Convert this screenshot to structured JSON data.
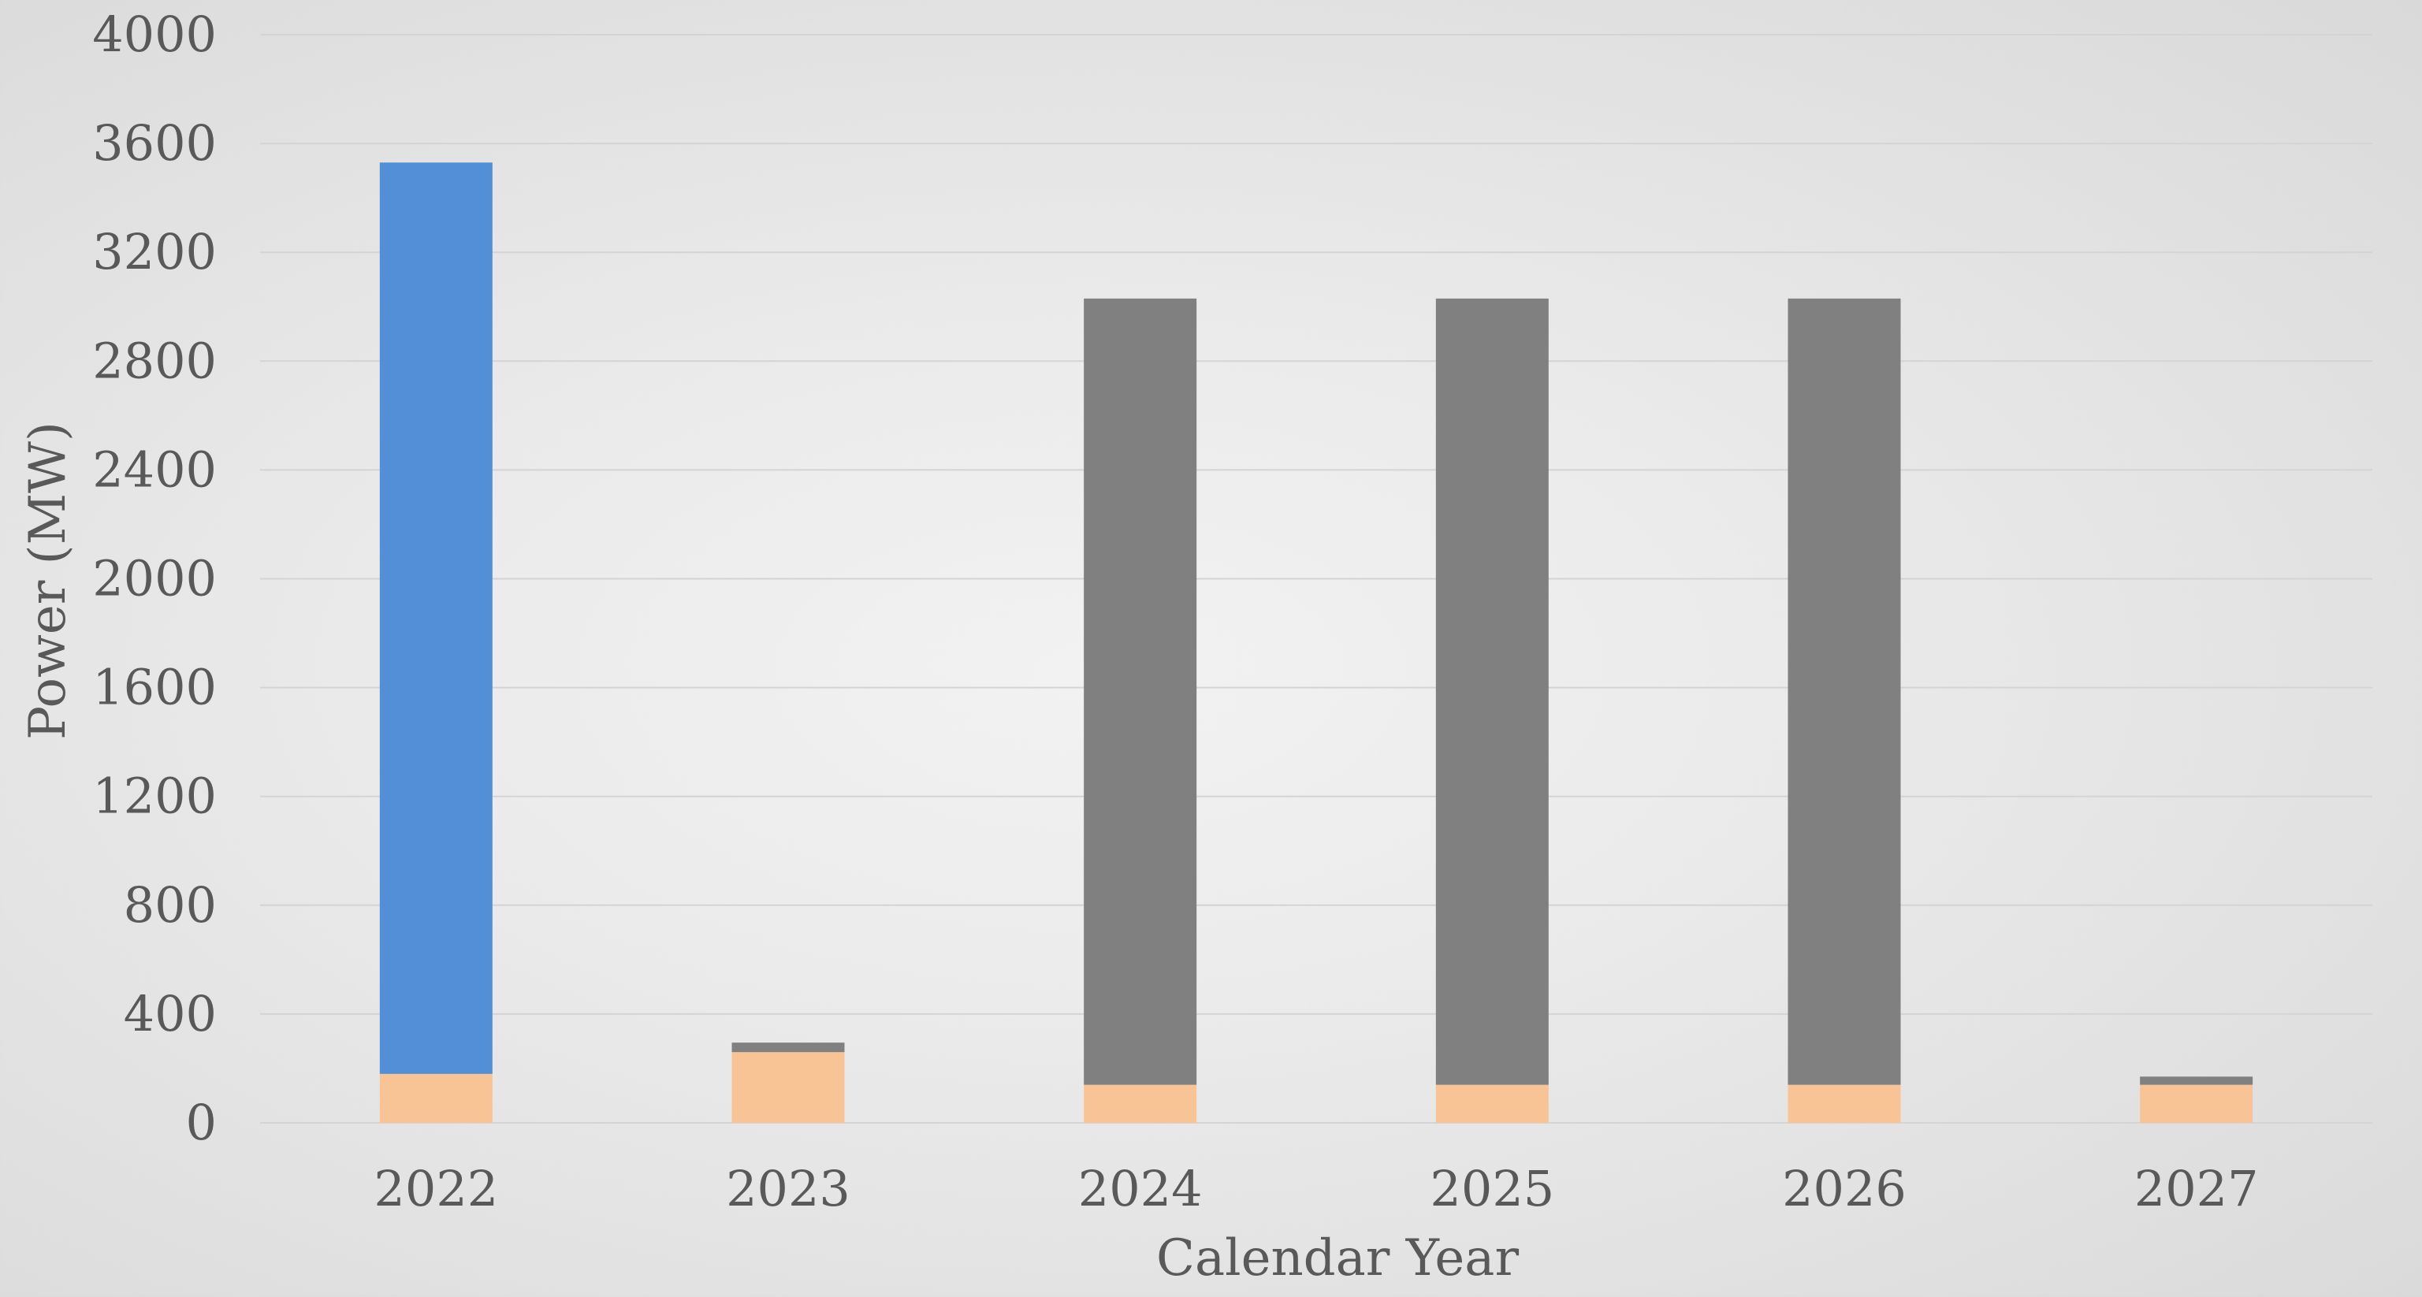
{
  "chart_data": {
    "type": "bar",
    "stacked": true,
    "categories": [
      "2022",
      "2023",
      "2024",
      "2025",
      "2026",
      "2027"
    ],
    "series": [
      {
        "color": "#F8C496",
        "values": [
          180,
          260,
          140,
          140,
          140,
          140
        ]
      },
      {
        "color": "#808080",
        "values": [
          0,
          35,
          2890,
          2890,
          2890,
          30
        ]
      },
      {
        "color": "#528FD6",
        "values": [
          3350,
          0,
          0,
          0,
          0,
          0
        ]
      }
    ],
    "title": "",
    "xlabel": "Calendar Year",
    "ylabel": "Power (MW)",
    "ylim": [
      0,
      4000
    ],
    "yticks": [
      "0",
      "400",
      "800",
      "1200",
      "1600",
      "2000",
      "2400",
      "2800",
      "3200",
      "3600",
      "4000"
    ],
    "grid": true,
    "legend": "none"
  }
}
